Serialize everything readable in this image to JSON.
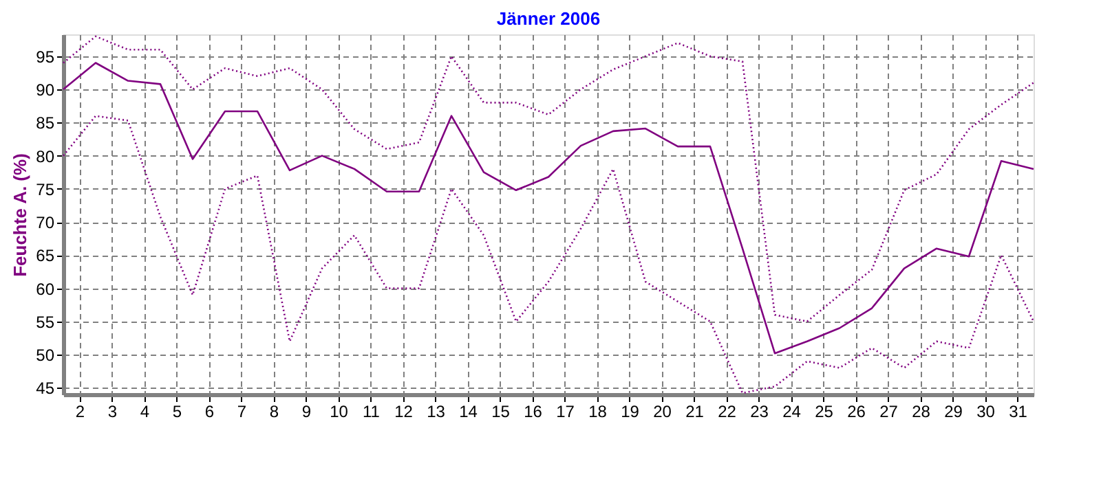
{
  "chart_data": {
    "type": "line",
    "title": "Jänner 2006",
    "ylabel": "Feuchte A.  (%)",
    "x": [
      1.5,
      2.5,
      3.5,
      4.5,
      5.5,
      6.5,
      7.5,
      8.5,
      9.5,
      10.5,
      11.5,
      12.5,
      13.5,
      14.5,
      15.5,
      16.5,
      17.5,
      18.5,
      19.5,
      20.5,
      21.5,
      22.5,
      23.5,
      24.5,
      25.5,
      26.5,
      27.5,
      28.5,
      29.5,
      30.5,
      31.5
    ],
    "series": [
      {
        "color": "#800080",
        "line_style": "dotted",
        "values": [
          94,
          98,
          96,
          96,
          90,
          93.2,
          92,
          93.2,
          90,
          84,
          81,
          82,
          95,
          88,
          88,
          86.2,
          90,
          93,
          95,
          97,
          95,
          94.2,
          56,
          55,
          59,
          62.8,
          74.8,
          77.2,
          84,
          87.7,
          91
        ]
      },
      {
        "color": "#800080",
        "line_style": "solid",
        "values": [
          90,
          94,
          91.3,
          90.8,
          79.5,
          86.7,
          86.7,
          77.8,
          80,
          78,
          74.6,
          74.6,
          86,
          77.5,
          74.8,
          76.8,
          81.5,
          83.7,
          84.1,
          81.4,
          81.4,
          66,
          50.2,
          52,
          54,
          57,
          63,
          66,
          64.8,
          79.2,
          78
        ]
      },
      {
        "color": "#800080",
        "line_style": "dotted",
        "values": [
          80,
          86,
          85.3,
          70.8,
          59,
          75,
          77,
          52,
          63,
          68,
          60,
          60,
          75,
          68,
          55,
          61,
          69,
          78,
          61,
          58,
          55,
          44.2,
          45.2,
          49,
          48,
          51,
          48,
          52,
          51,
          65,
          55
        ]
      }
    ],
    "xlim": [
      1.5,
      31.5
    ],
    "xticks": [
      2,
      3,
      4,
      5,
      6,
      7,
      8,
      9,
      10,
      11,
      12,
      13,
      14,
      15,
      16,
      17,
      18,
      19,
      20,
      21,
      22,
      23,
      24,
      25,
      26,
      27,
      28,
      29,
      30,
      31
    ],
    "ylim": [
      44,
      98.3
    ],
    "yticks": [
      45,
      50,
      55,
      60,
      65,
      70,
      75,
      80,
      85,
      90,
      95
    ],
    "grid": true,
    "legend": false
  }
}
